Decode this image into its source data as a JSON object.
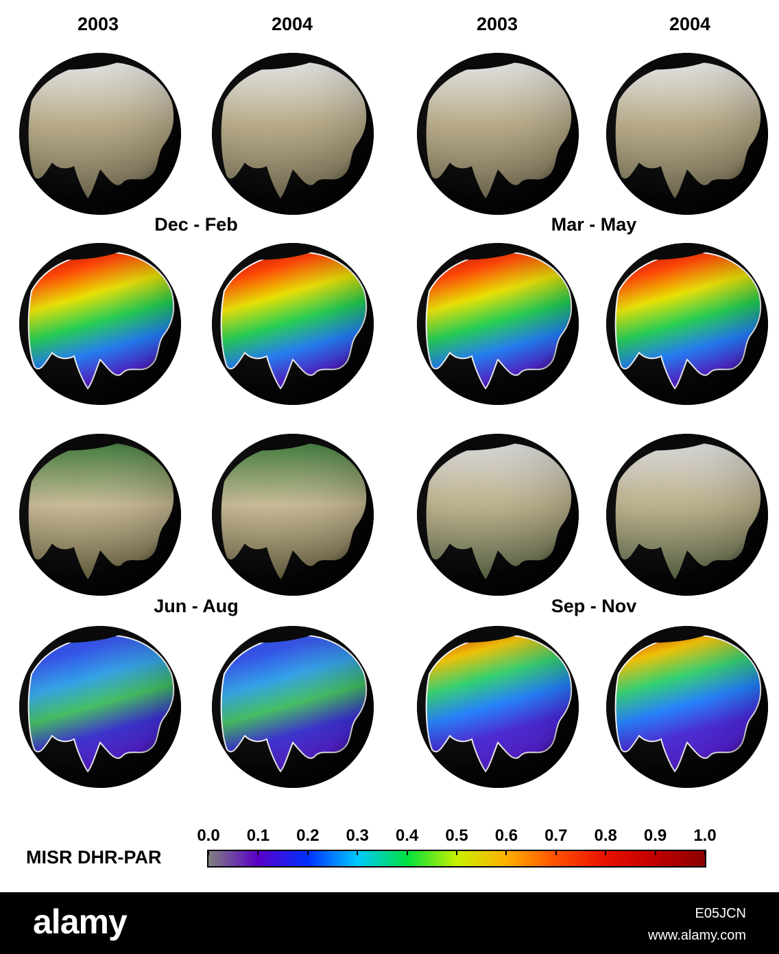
{
  "headers": {
    "year_1": "2003",
    "year_2": "2004",
    "year_3": "2003",
    "year_4": "2004"
  },
  "seasons": {
    "dec_feb": "Dec - Feb",
    "mar_may": "Mar - May",
    "jun_aug": "Jun - Aug",
    "sep_nov": "Sep - Nov"
  },
  "legend": {
    "title": "MISR DHR-PAR",
    "ticks": [
      "0.0",
      "0.1",
      "0.2",
      "0.3",
      "0.4",
      "0.5",
      "0.6",
      "0.7",
      "0.8",
      "0.9",
      "1.0"
    ],
    "range": [
      0.0,
      1.0
    ],
    "colors": [
      "#808080",
      "#5a00c8",
      "#0030ff",
      "#00c8ff",
      "#00e040",
      "#c8f000",
      "#ffb000",
      "#ff5000",
      "#e81000",
      "#c00000",
      "#8a0000"
    ]
  },
  "footer": {
    "logo": "alamy",
    "image_id": "E05JCN",
    "url": "www.alamy.com"
  }
}
